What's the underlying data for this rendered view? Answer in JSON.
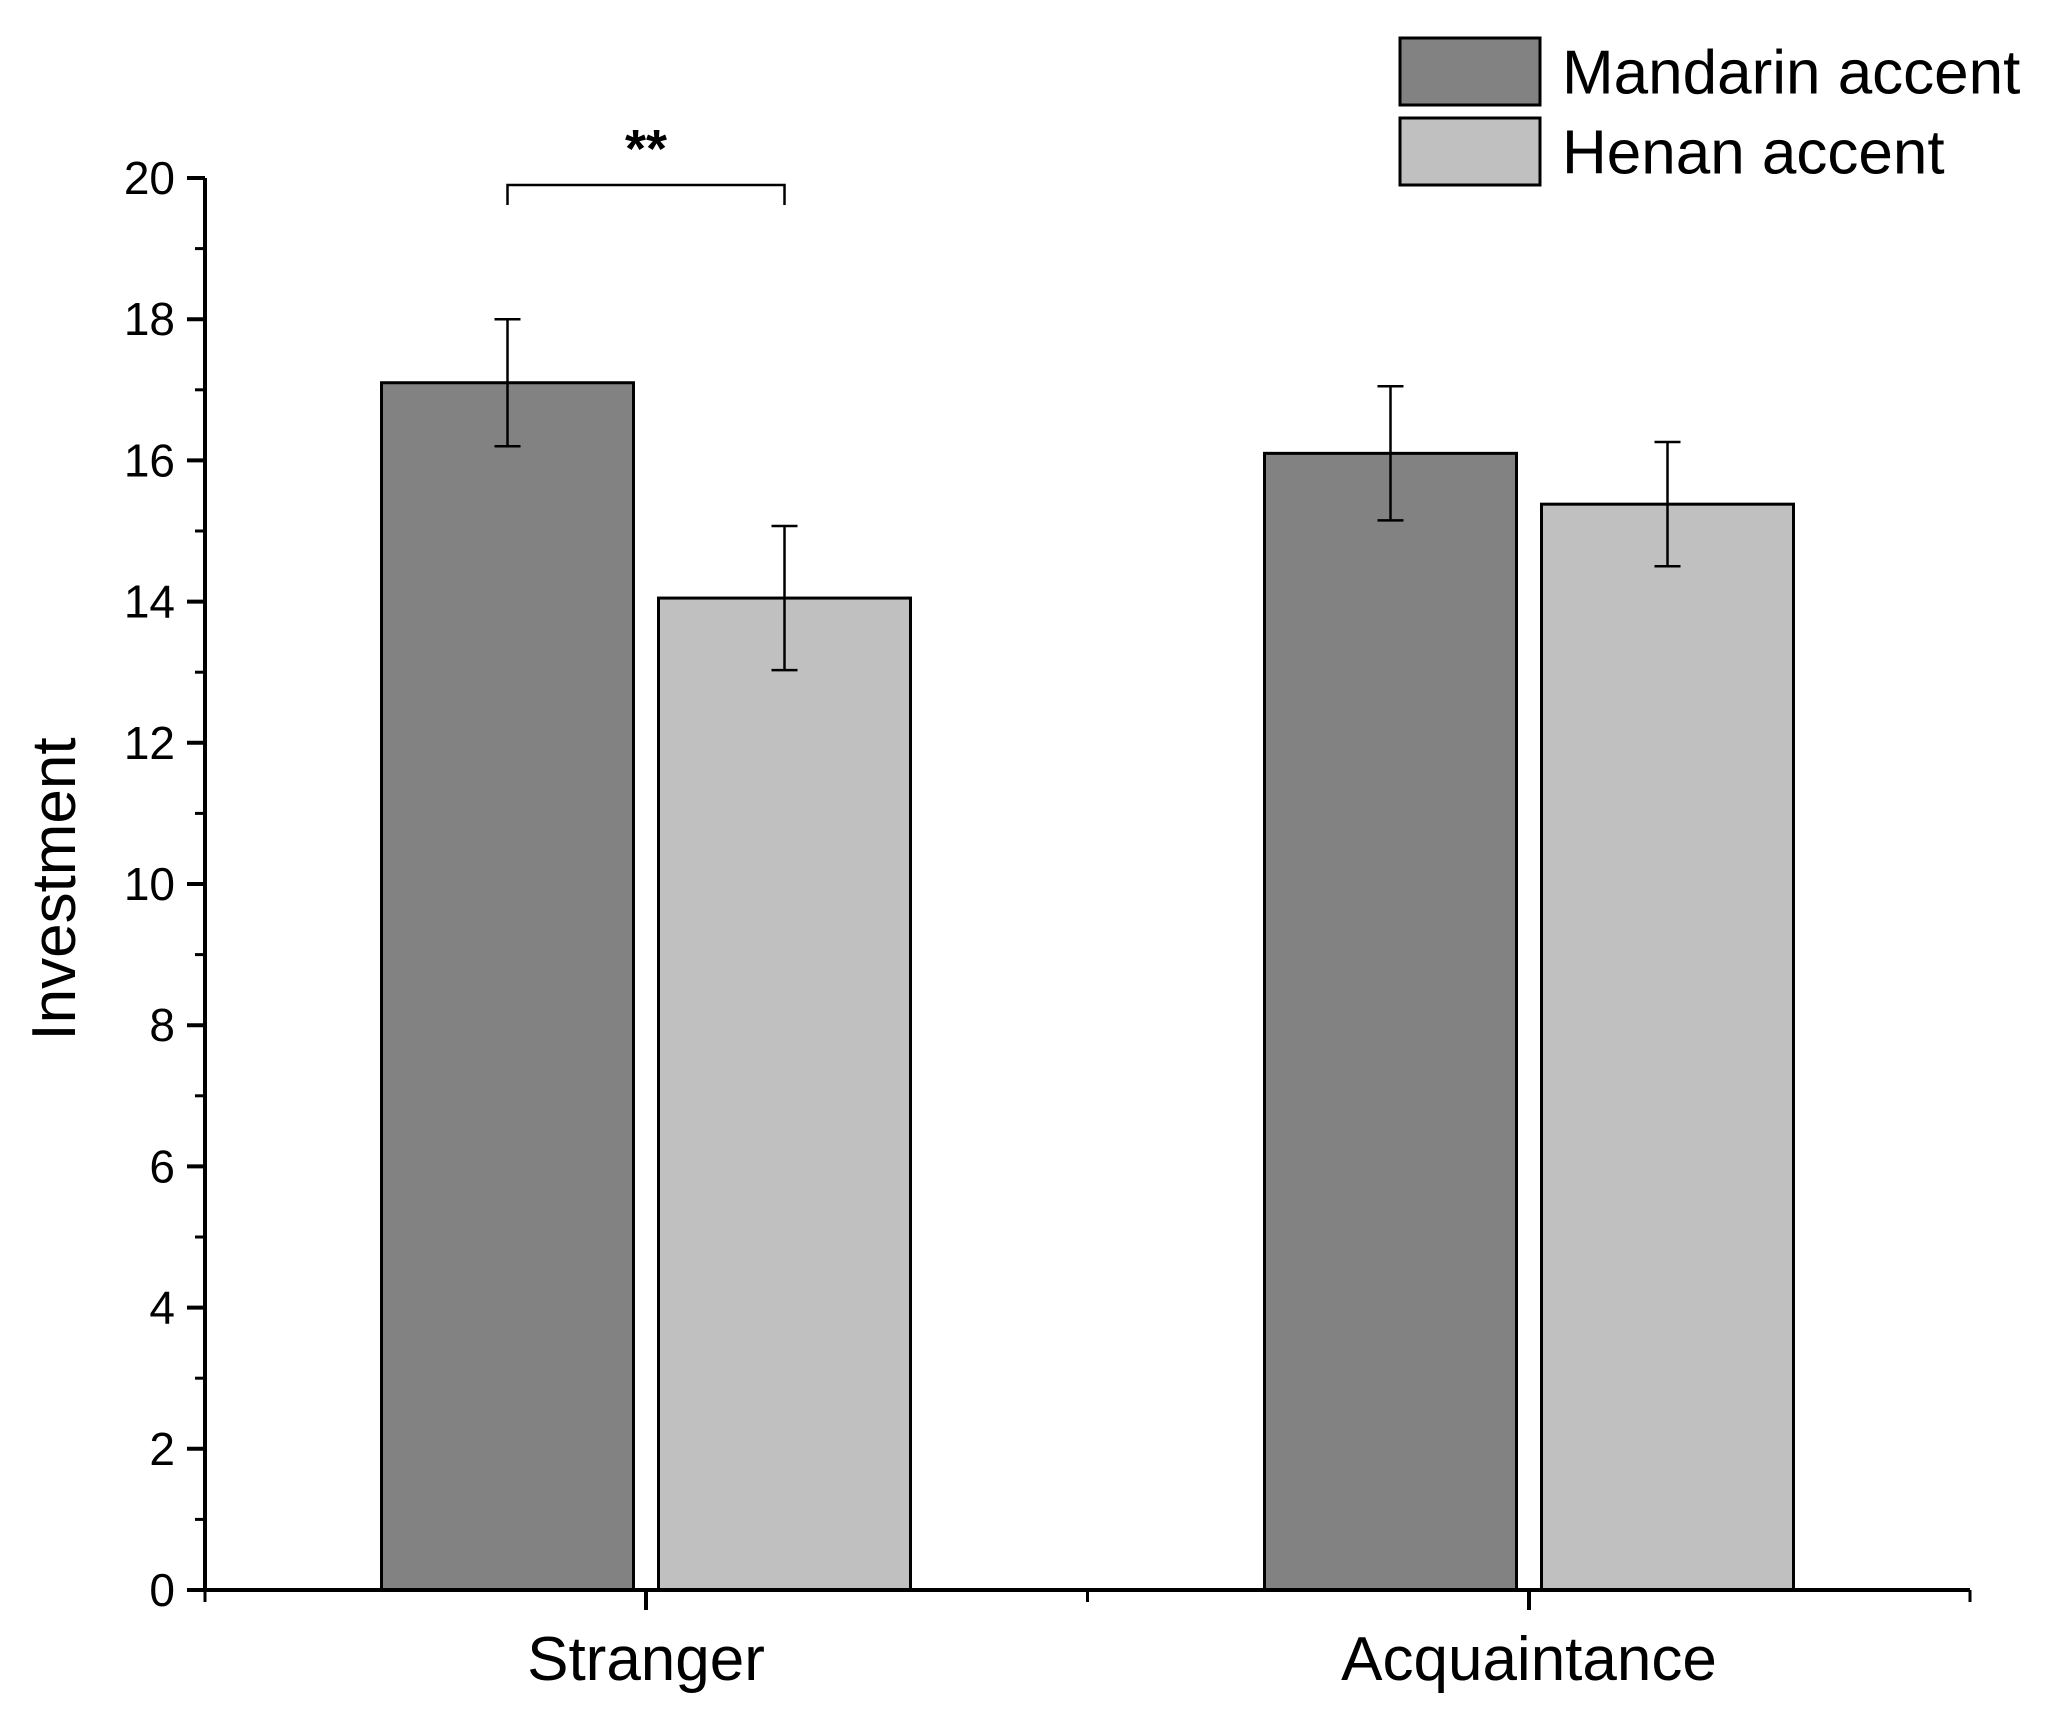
{
  "chart_data": {
    "type": "bar",
    "title": "",
    "xlabel": "",
    "ylabel": "Investment",
    "ylim": [
      0,
      20
    ],
    "yticks": [
      "0",
      "2",
      "4",
      "6",
      "8",
      "10",
      "12",
      "14",
      "16",
      "18",
      "20"
    ],
    "categories": [
      "Stranger",
      "Acquaintance"
    ],
    "series": [
      {
        "name": "Mandarin accent",
        "color": "#828282",
        "values": [
          17.1,
          16.1
        ],
        "errors": [
          0.9,
          0.95
        ]
      },
      {
        "name": "Henan accent",
        "color": "#c0c0c0",
        "values": [
          14.05,
          15.38
        ],
        "errors": [
          1.02,
          0.88
        ]
      }
    ],
    "annotations": [
      {
        "text": "**",
        "category": "Stranger",
        "between_series": [
          0,
          1
        ],
        "bracket_value": 19.9
      }
    ],
    "legend": "top-right",
    "grid": false
  }
}
